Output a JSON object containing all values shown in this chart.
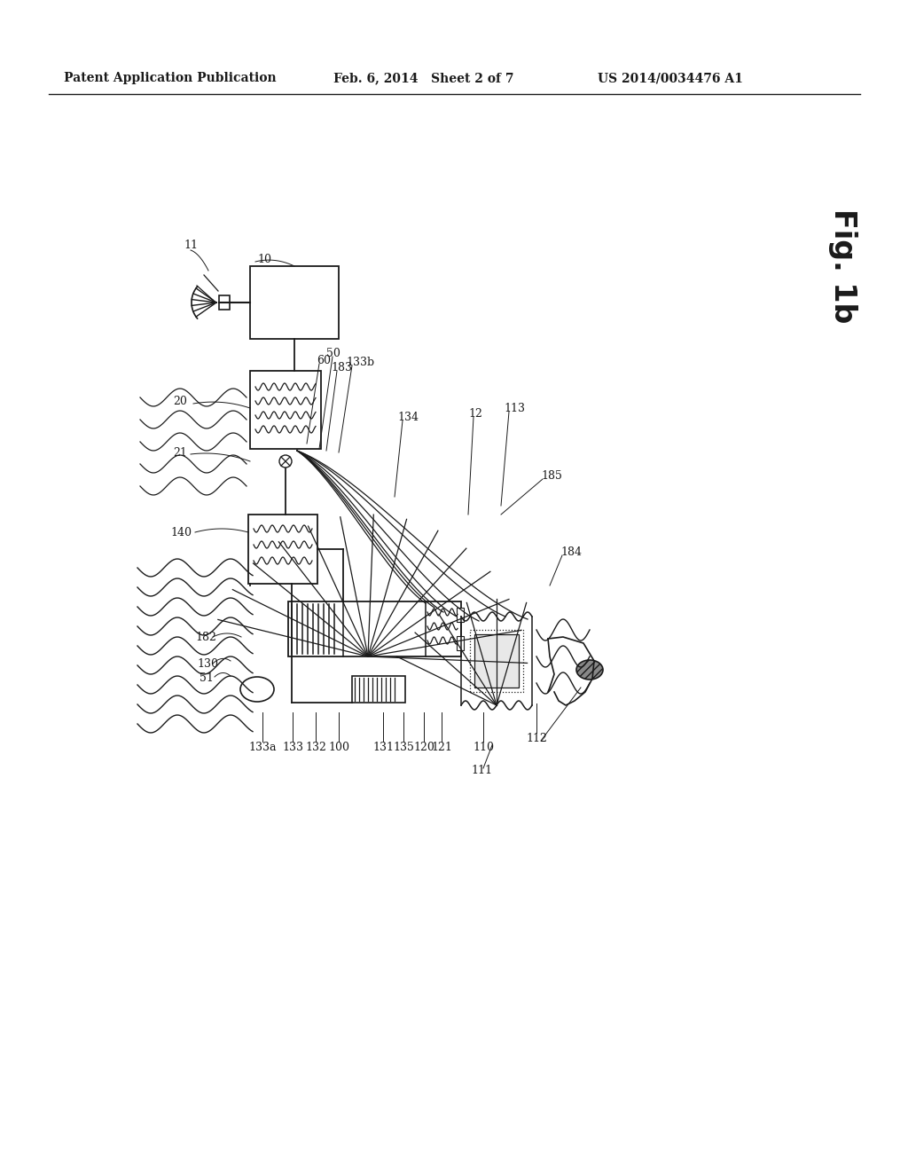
{
  "bg_color": "#ffffff",
  "lc": "#1a1a1a",
  "header_left": "Patent Application Publication",
  "header_mid": "Feb. 6, 2014   Sheet 2 of 7",
  "header_right": "US 2014/0034476 A1",
  "fig_label": "Fig. 1b"
}
